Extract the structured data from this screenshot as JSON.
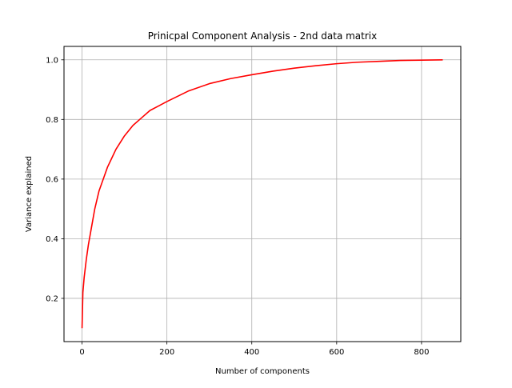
{
  "chart_data": {
    "type": "line",
    "title": "Prinicpal Component Analysis - 2nd data matrix",
    "xlabel": "Number of components",
    "ylabel": "Variance explained",
    "xlim": [
      -42.5,
      892.5
    ],
    "ylim": [
      0.055,
      1.045
    ],
    "xticks": [
      0,
      200,
      400,
      600,
      800
    ],
    "yticks": [
      0.2,
      0.4,
      0.6,
      0.8,
      1.0
    ],
    "xtick_labels": [
      "0",
      "200",
      "400",
      "600",
      "800"
    ],
    "ytick_labels": [
      "0.2",
      "0.4",
      "0.6",
      "0.8",
      "1.0"
    ],
    "grid": true,
    "series": [
      {
        "color": "#ff0000",
        "x": [
          0,
          2,
          5,
          10,
          15,
          20,
          25,
          30,
          40,
          50,
          60,
          70,
          80,
          100,
          120,
          140,
          160,
          180,
          200,
          250,
          300,
          350,
          400,
          450,
          500,
          550,
          600,
          650,
          700,
          750,
          800,
          850
        ],
        "y": [
          0.1,
          0.22,
          0.27,
          0.33,
          0.38,
          0.42,
          0.46,
          0.5,
          0.56,
          0.6,
          0.64,
          0.67,
          0.7,
          0.745,
          0.78,
          0.805,
          0.83,
          0.845,
          0.86,
          0.895,
          0.92,
          0.937,
          0.95,
          0.962,
          0.972,
          0.98,
          0.987,
          0.992,
          0.995,
          0.998,
          0.999,
          1.0
        ]
      }
    ]
  }
}
